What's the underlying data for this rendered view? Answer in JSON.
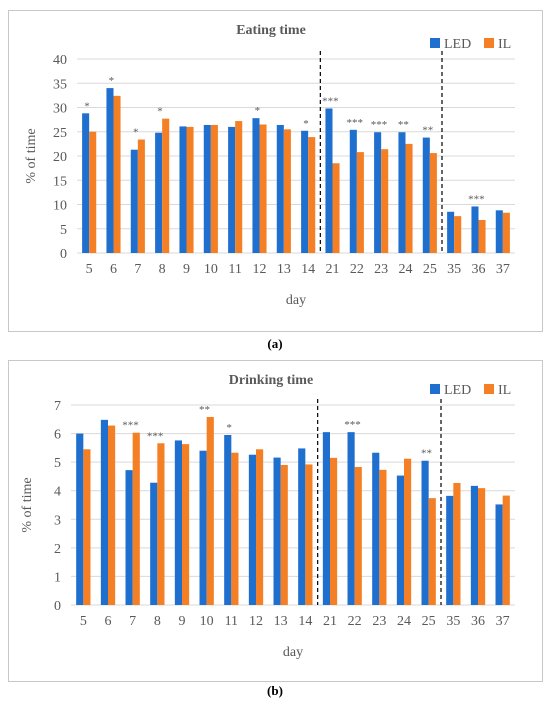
{
  "colors": {
    "LED": "#1f6fcf",
    "IL": "#f47f24",
    "grid": "#d9d9d9",
    "text": "#595959"
  },
  "captions": [
    "(a)",
    "(b)"
  ],
  "chart_data": [
    {
      "type": "bar",
      "title": "Eating time",
      "xlabel": "day",
      "ylabel": "% of time",
      "ylim": [
        0,
        40
      ],
      "yticks": [
        0,
        5,
        10,
        15,
        20,
        25,
        30,
        35,
        40
      ],
      "grid": true,
      "legend": "top-right",
      "categories": [
        "5",
        "6",
        "7",
        "8",
        "9",
        "10",
        "11",
        "12",
        "13",
        "14",
        "21",
        "22",
        "23",
        "24",
        "25",
        "35",
        "36",
        "37"
      ],
      "series": [
        {
          "name": "LED",
          "values": [
            28.8,
            34.0,
            21.3,
            24.8,
            26.1,
            26.4,
            26.0,
            27.8,
            26.4,
            25.2,
            29.8,
            25.4,
            24.9,
            24.9,
            23.8,
            8.5,
            9.6,
            8.8
          ]
        },
        {
          "name": "IL",
          "values": [
            25.0,
            32.4,
            23.4,
            27.7,
            26.0,
            26.4,
            27.2,
            26.5,
            25.5,
            23.9,
            18.5,
            20.8,
            21.4,
            22.5,
            20.6,
            7.6,
            6.8,
            8.3
          ]
        }
      ],
      "annotations": [
        "*",
        "*",
        "*",
        "*",
        "",
        "",
        "",
        "*",
        "",
        "*",
        "***",
        "***",
        "***",
        "**",
        "**",
        "",
        "***",
        ""
      ],
      "separators_after": [
        "14",
        "25"
      ]
    },
    {
      "type": "bar",
      "title": "Drinking time",
      "xlabel": "day",
      "ylabel": "% of time",
      "ylim": [
        0,
        7
      ],
      "yticks": [
        0,
        1,
        2,
        3,
        4,
        5,
        6,
        7
      ],
      "grid": true,
      "legend": "top-right",
      "categories": [
        "5",
        "6",
        "7",
        "8",
        "9",
        "10",
        "11",
        "12",
        "13",
        "14",
        "21",
        "22",
        "23",
        "24",
        "25",
        "35",
        "36",
        "37"
      ],
      "series": [
        {
          "name": "LED",
          "values": [
            6.0,
            6.48,
            4.72,
            4.28,
            5.76,
            5.4,
            5.95,
            5.26,
            5.16,
            5.48,
            6.05,
            6.05,
            5.33,
            4.53,
            5.05,
            3.82,
            4.17,
            3.52
          ]
        },
        {
          "name": "IL",
          "values": [
            5.45,
            6.28,
            6.03,
            5.66,
            5.63,
            6.58,
            5.33,
            5.45,
            4.9,
            4.92,
            5.15,
            4.83,
            4.73,
            5.12,
            3.74,
            4.27,
            4.09,
            3.83
          ]
        }
      ],
      "annotations": [
        "",
        "",
        "***",
        "***",
        "",
        "**",
        "*",
        "",
        "",
        "",
        "",
        "***",
        "",
        "",
        "**",
        "",
        "",
        ""
      ],
      "separators_after": [
        "14",
        "25"
      ]
    }
  ]
}
